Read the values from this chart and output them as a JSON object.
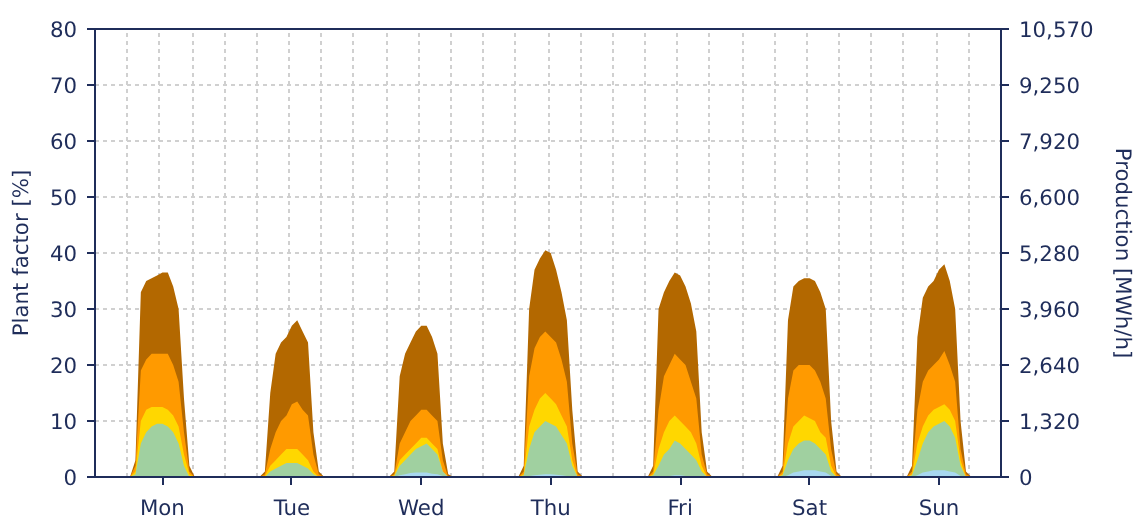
{
  "chart_data": {
    "type": "area",
    "ylabel": "Plant factor [%]",
    "y2label": "Production [MWh/h]",
    "categories": [
      null,
      null,
      null,
      null,
      null,
      null,
      null,
      null,
      null,
      null,
      null,
      null,
      "Mon",
      null,
      null,
      null,
      null,
      null,
      null,
      null,
      null,
      null,
      null,
      null,
      null,
      null,
      null,
      null,
      null,
      null,
      null,
      null,
      null,
      null,
      null,
      null,
      "Tue",
      null,
      null,
      null,
      null,
      null,
      null,
      null,
      null,
      null,
      null,
      null,
      null,
      null,
      null,
      null,
      null,
      null,
      null,
      null,
      null,
      null,
      null,
      null,
      "Wed",
      null,
      null,
      null,
      null,
      null,
      null,
      null,
      null,
      null,
      null,
      null,
      null,
      null,
      null,
      null,
      null,
      null,
      null,
      null,
      null,
      null,
      null,
      null,
      "Thu",
      null,
      null,
      null,
      null,
      null,
      null,
      null,
      null,
      null,
      null,
      null,
      null,
      null,
      null,
      null,
      null,
      null,
      null,
      null,
      null,
      null,
      null,
      null,
      "Fri",
      null,
      null,
      null,
      null,
      null,
      null,
      null,
      null,
      null,
      null,
      null,
      null,
      null,
      null,
      null,
      null,
      null,
      null,
      null,
      null,
      null,
      null,
      null,
      "Sat",
      null,
      null,
      null,
      null,
      null,
      null,
      null,
      null,
      null,
      null,
      null,
      null,
      null,
      null,
      null,
      null,
      null,
      null,
      null,
      null,
      null,
      null,
      null,
      "Sun",
      null,
      null,
      null,
      null,
      null,
      null,
      null,
      null,
      null,
      null,
      null
    ],
    "series": [
      {
        "color": "#b36800",
        "values": [
          0,
          0,
          0,
          0,
          0,
          0,
          0,
          3,
          33,
          35,
          35.5,
          36,
          36.5,
          36.5,
          34,
          30,
          14,
          2,
          0,
          0,
          0,
          0,
          0,
          0,
          0,
          0,
          0,
          0,
          0,
          0,
          0,
          1,
          15,
          22,
          24,
          25,
          27,
          28,
          26,
          24,
          8,
          1,
          0,
          0,
          0,
          0,
          0,
          0,
          0,
          0,
          0,
          0,
          0,
          0,
          0,
          1,
          18,
          22,
          24,
          26,
          27,
          27,
          25,
          22,
          6,
          0.5,
          0,
          0,
          0,
          0,
          0,
          0,
          0,
          0,
          0,
          0,
          0,
          0,
          0,
          2,
          30,
          37,
          39,
          40.5,
          40,
          37,
          33,
          28,
          12,
          1,
          0,
          0,
          0,
          0,
          0,
          0,
          0,
          0,
          0,
          0,
          0,
          0,
          0,
          2,
          30,
          33,
          35,
          36.5,
          36,
          34,
          31,
          26,
          8,
          1,
          0,
          0,
          0,
          0,
          0,
          0,
          0,
          0,
          0,
          0,
          0,
          0,
          0,
          2,
          28,
          34,
          35,
          35.5,
          35.5,
          35,
          33,
          30,
          10,
          1,
          0,
          0,
          0,
          0,
          0,
          0,
          0,
          0,
          0,
          0,
          0,
          0,
          0,
          2,
          25,
          32,
          34,
          35,
          37,
          38,
          35,
          30,
          10,
          1,
          0,
          0,
          0,
          0,
          0,
          0
        ]
      },
      {
        "color": "#ff9a00",
        "values": [
          0,
          0,
          0,
          0,
          0,
          0,
          0,
          2,
          19,
          21,
          22,
          22,
          22,
          22,
          20,
          17,
          8,
          1,
          0,
          0,
          0,
          0,
          0,
          0,
          0,
          0,
          0,
          0,
          0,
          0,
          0,
          0.5,
          5,
          8,
          10,
          11,
          13,
          13.5,
          12,
          11,
          4,
          0.5,
          0,
          0,
          0,
          0,
          0,
          0,
          0,
          0,
          0,
          0,
          0,
          0,
          0,
          0.5,
          6,
          8,
          10,
          11,
          12,
          12,
          11,
          10,
          3,
          0,
          0,
          0,
          0,
          0,
          0,
          0,
          0,
          0,
          0,
          0,
          0,
          0,
          0,
          1,
          18,
          23,
          25,
          26,
          25,
          24,
          21,
          17,
          6,
          0.5,
          0,
          0,
          0,
          0,
          0,
          0,
          0,
          0,
          0,
          0,
          0,
          0,
          0,
          1,
          12,
          18,
          20,
          22,
          21,
          20,
          17,
          14,
          4,
          0.5,
          0,
          0,
          0,
          0,
          0,
          0,
          0,
          0,
          0,
          0,
          0,
          0,
          0,
          1,
          14,
          19,
          20,
          20,
          20,
          19,
          17,
          14,
          5,
          0.5,
          0,
          0,
          0,
          0,
          0,
          0,
          0,
          0,
          0,
          0,
          0,
          0,
          0,
          1,
          12,
          17,
          19,
          20,
          21,
          22.5,
          20,
          17,
          5,
          0.5,
          0,
          0,
          0,
          0,
          0,
          0
        ]
      },
      {
        "color": "#ffd700",
        "values": [
          0,
          0,
          0,
          0,
          0,
          0,
          0,
          1,
          10,
          12,
          12.5,
          12.5,
          12.5,
          12,
          11,
          9,
          4,
          0.5,
          0,
          0,
          0,
          0,
          0,
          0,
          0,
          0,
          0,
          0,
          0,
          0,
          0,
          0.2,
          2,
          3,
          4,
          5,
          5,
          5,
          4,
          3,
          1,
          0,
          0,
          0,
          0,
          0,
          0,
          0,
          0,
          0,
          0,
          0,
          0,
          0,
          0,
          0.3,
          3,
          4,
          5,
          6,
          7,
          7,
          6,
          5,
          1,
          0,
          0,
          0,
          0,
          0,
          0,
          0,
          0,
          0,
          0,
          0,
          0,
          0,
          0,
          0.5,
          9,
          12,
          14,
          15,
          14,
          13,
          11,
          9,
          3,
          0,
          0,
          0,
          0,
          0,
          0,
          0,
          0,
          0,
          0,
          0,
          0,
          0,
          0,
          0.5,
          5,
          8,
          10,
          11,
          10,
          9,
          8,
          6,
          2,
          0,
          0,
          0,
          0,
          0,
          0,
          0,
          0,
          0,
          0,
          0,
          0,
          0,
          0,
          0.5,
          6,
          9,
          10,
          11,
          10.5,
          10,
          8,
          7,
          2,
          0,
          0,
          0,
          0,
          0,
          0,
          0,
          0,
          0,
          0,
          0,
          0,
          0,
          0,
          0.5,
          6,
          9,
          11,
          12,
          12.5,
          13,
          12,
          10,
          3,
          0,
          0,
          0,
          0,
          0,
          0,
          0
        ]
      },
      {
        "color": "#a0d0a0",
        "values": [
          0,
          0,
          0,
          0,
          0,
          0,
          0,
          0.5,
          6,
          8,
          9,
          9.5,
          9.5,
          9,
          8,
          6,
          2,
          0,
          0,
          0,
          0,
          0,
          0,
          0,
          0,
          0,
          0,
          0,
          0,
          0,
          0,
          0,
          1,
          1.5,
          2,
          2.5,
          2.5,
          2.5,
          2,
          1.5,
          0.5,
          0,
          0,
          0,
          0,
          0,
          0,
          0,
          0,
          0,
          0,
          0,
          0,
          0,
          0,
          0.2,
          2,
          3,
          4,
          5,
          5.5,
          6,
          5,
          4,
          1,
          0,
          0,
          0,
          0,
          0,
          0,
          0,
          0,
          0,
          0,
          0,
          0,
          0,
          0,
          0.3,
          5,
          8,
          9,
          10,
          9.5,
          9,
          7.5,
          6,
          2,
          0,
          0,
          0,
          0,
          0,
          0,
          0,
          0,
          0,
          0,
          0,
          0,
          0,
          0,
          0.3,
          2,
          4,
          5,
          6.5,
          6,
          5,
          4,
          3,
          1,
          0,
          0,
          0,
          0,
          0,
          0,
          0,
          0,
          0,
          0,
          0,
          0,
          0,
          0,
          0.3,
          3,
          5,
          6,
          6.5,
          6.5,
          6,
          5,
          4,
          1,
          0,
          0,
          0,
          0,
          0,
          0,
          0,
          0,
          0,
          0,
          0,
          0,
          0,
          0,
          0.3,
          3,
          6,
          8,
          9,
          9.5,
          10,
          9,
          7,
          2,
          0,
          0,
          0,
          0,
          0,
          0,
          0
        ]
      },
      {
        "color": "#a8d8f0",
        "values": [
          0,
          0,
          0,
          0,
          0,
          0,
          0,
          0,
          0,
          0,
          0,
          0.2,
          0.2,
          0.2,
          0,
          0,
          0,
          0,
          0,
          0,
          0,
          0,
          0,
          0,
          0,
          0,
          0,
          0,
          0,
          0,
          0,
          0,
          0,
          0,
          0,
          0,
          0,
          0,
          0,
          0,
          0,
          0,
          0,
          0,
          0,
          0,
          0,
          0,
          0,
          0,
          0,
          0,
          0,
          0,
          0,
          0,
          0.3,
          0.5,
          0.7,
          0.8,
          0.8,
          0.8,
          0.6,
          0.5,
          0.2,
          0,
          0,
          0,
          0,
          0,
          0,
          0,
          0,
          0,
          0,
          0,
          0,
          0,
          0,
          0,
          0.2,
          0.3,
          0.4,
          0.5,
          0.5,
          0.4,
          0.3,
          0.2,
          0,
          0,
          0,
          0,
          0,
          0,
          0,
          0,
          0,
          0,
          0,
          0,
          0,
          0,
          0,
          0,
          0,
          0.1,
          0.2,
          0.3,
          0.3,
          0.2,
          0.1,
          0,
          0,
          0,
          0,
          0,
          0,
          0,
          0,
          0,
          0,
          0,
          0,
          0,
          0,
          0,
          0,
          0,
          0.3,
          0.8,
          1,
          1.2,
          1.2,
          1.2,
          1,
          0.8,
          0.2,
          0,
          0,
          0,
          0,
          0,
          0,
          0,
          0,
          0,
          0,
          0,
          0,
          0,
          0,
          0,
          0.3,
          0.8,
          1,
          1.2,
          1.2,
          1.2,
          1,
          0.8,
          0.2,
          0,
          0,
          0,
          0,
          0,
          0,
          0
        ]
      }
    ],
    "ylim": [
      0,
      80
    ],
    "yticks": [
      0,
      10,
      20,
      30,
      40,
      50,
      60,
      70,
      80
    ],
    "y2lim": [
      0,
      10570
    ],
    "y2ticks": [
      0,
      {
        "value": 1320,
        "label": "1,320"
      },
      {
        "value": 2640,
        "label": "2,640"
      },
      {
        "value": 3960,
        "label": "3,960"
      },
      {
        "value": 5280,
        "label": "5,280"
      },
      {
        "value": 6600,
        "label": "6,600"
      },
      {
        "value": 7920,
        "label": "7,920"
      },
      {
        "value": 9250,
        "label": "9,250"
      },
      {
        "value": 10570,
        "label": "10,570"
      }
    ],
    "grid": true
  }
}
